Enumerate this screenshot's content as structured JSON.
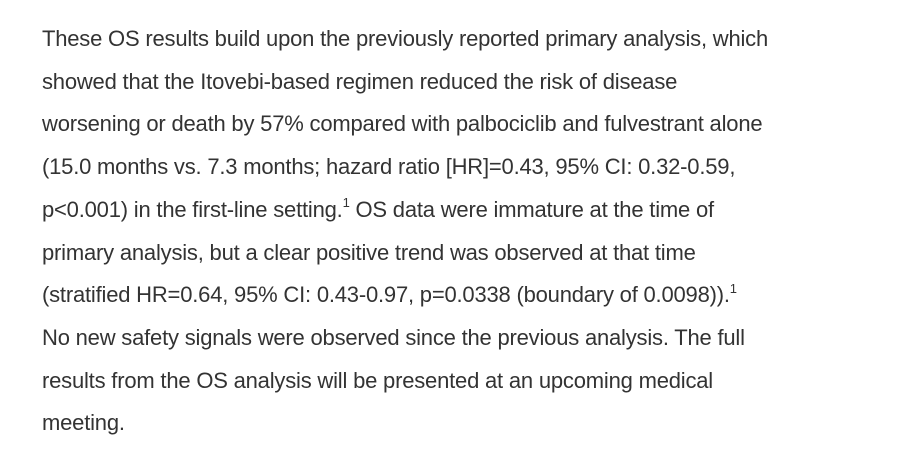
{
  "page": {
    "background_color": "#ffffff",
    "text_color": "#333333"
  },
  "paragraph": {
    "full_text": "These OS results build upon the previously reported primary analysis, which showed that the Itovebi-based regimen reduced the risk of disease worsening or death by 57% compared with palbociclib and fulvestrant alone (15.0 months vs. 7.3 months; hazard ratio [HR]=0.43, 95% CI: 0.32-0.59, p<0.001) in the first-line setting.1 OS data were immature at the time of primary analysis, but a clear positive trend was observed at that time (stratified HR=0.64, 95% CI: 0.43-0.97, p=0.0338 (boundary of 0.0098)).1 No new safety signals were observed since the previous analysis. The full results from the OS analysis will be presented at an upcoming medical meeting.",
    "footnote_marker": "1",
    "lines": [
      {
        "segments": [
          {
            "text": "These OS results build upon the previously reported primary analysis, which"
          }
        ]
      },
      {
        "segments": [
          {
            "text": "showed that the Itovebi-based regimen reduced the risk of disease"
          }
        ]
      },
      {
        "segments": [
          {
            "text": "worsening or death by 57% compared with palbociclib and fulvestrant alone"
          }
        ]
      },
      {
        "segments": [
          {
            "text": "(15.0 months vs. 7.3 months; hazard ratio [HR]=0.43, 95% CI: 0.32-0.59,"
          }
        ]
      },
      {
        "segments": [
          {
            "text": "p<0.001) in the first-line setting."
          },
          {
            "text": "1",
            "sup": true
          },
          {
            "text": " OS data were immature at the time of"
          }
        ]
      },
      {
        "segments": [
          {
            "text": "primary analysis, but a clear positive trend was observed at that time"
          }
        ]
      },
      {
        "segments": [
          {
            "text": "(stratified HR=0.64, 95% CI: 0.43-0.97, p=0.0338 (boundary of 0.0098))."
          },
          {
            "text": "1",
            "sup": true
          }
        ]
      },
      {
        "segments": [
          {
            "text": "No new safety signals were observed since the previous analysis. The full"
          }
        ]
      },
      {
        "segments": [
          {
            "text": "results from the OS analysis will be presented at an upcoming medical"
          }
        ]
      },
      {
        "segments": [
          {
            "text": "meeting."
          }
        ]
      }
    ]
  }
}
